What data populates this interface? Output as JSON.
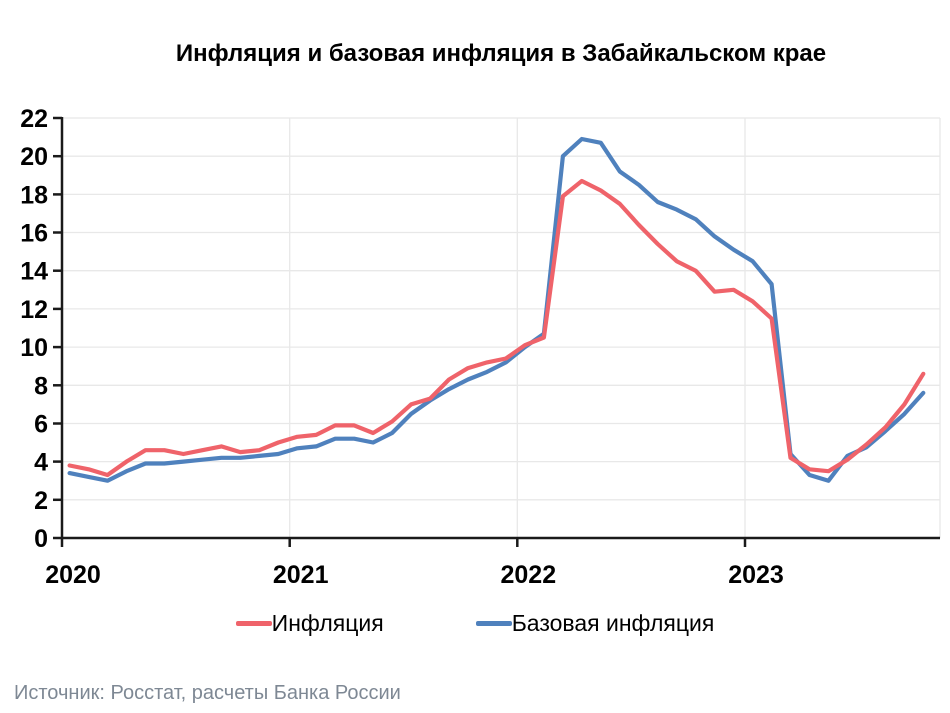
{
  "title": "Инфляция и базовая инфляция в Забайкальском крае",
  "source_note": "Источник: Росстат, расчеты Банка России",
  "colors": {
    "inflation_red": "#EF636A",
    "core_inflation_blue": "#4F81BD",
    "axis": "#1a1a1a",
    "grid": "#e8e8e8",
    "source_text": "#7e8894"
  },
  "chart_data": {
    "type": "line",
    "title": "Инфляция и базовая инфляция в Забайкальском крае",
    "x_start": "2020-01",
    "x_end": "2023-10",
    "frequency": "monthly",
    "x_tick_labels": [
      "2020",
      "2021",
      "2022",
      "2023"
    ],
    "y_tick_labels": [
      "0",
      "2",
      "4",
      "6",
      "8",
      "10",
      "12",
      "14",
      "16",
      "18",
      "20",
      "22"
    ],
    "ylim": [
      0,
      22
    ],
    "grid": true,
    "legend_position": "bottom",
    "series": [
      {
        "name": "Инфляция",
        "color": "#EF636A",
        "values": [
          3.8,
          3.6,
          3.3,
          4.0,
          4.6,
          4.6,
          4.4,
          4.6,
          4.8,
          4.5,
          4.6,
          5.0,
          5.3,
          5.4,
          5.9,
          5.9,
          5.5,
          6.1,
          7.0,
          7.3,
          8.3,
          8.9,
          9.2,
          9.4,
          10.1,
          10.5,
          17.9,
          18.7,
          18.2,
          17.5,
          16.4,
          15.4,
          14.5,
          14.0,
          12.9,
          13.0,
          12.4,
          11.5,
          4.2,
          3.6,
          3.5,
          4.1,
          4.9,
          5.8,
          7.0,
          8.6
        ]
      },
      {
        "name": "Базовая инфляция",
        "color": "#4F81BD",
        "values": [
          3.4,
          3.2,
          3.0,
          3.5,
          3.9,
          3.9,
          4.0,
          4.1,
          4.2,
          4.2,
          4.3,
          4.4,
          4.7,
          4.8,
          5.2,
          5.2,
          5.0,
          5.5,
          6.5,
          7.2,
          7.8,
          8.3,
          8.7,
          9.2,
          10.0,
          10.7,
          20.0,
          20.9,
          20.7,
          19.2,
          18.5,
          17.6,
          17.2,
          16.7,
          15.8,
          15.1,
          14.5,
          13.3,
          4.4,
          3.3,
          3.0,
          4.3,
          4.75,
          5.6,
          6.5,
          7.6
        ]
      }
    ]
  }
}
